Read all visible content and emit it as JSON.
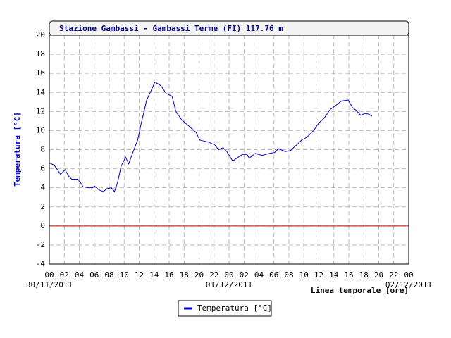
{
  "chart_data": {
    "type": "line",
    "title": "Stazione Gambassi - Gambassi Terme (FI) 117.76 m",
    "y_label": "Temperatura [°C]",
    "x_label": "Linea temporale [ore]",
    "date_labels": [
      {
        "value": 0,
        "label": "30/11/2011"
      },
      {
        "value": 24,
        "label": "01/12/2011"
      },
      {
        "value": 48,
        "label": "02/12/2011"
      }
    ],
    "xlim": [
      0,
      48
    ],
    "xticks": [
      {
        "value": 0,
        "label": "00"
      },
      {
        "value": 2,
        "label": "02"
      },
      {
        "value": 4,
        "label": "04"
      },
      {
        "value": 6,
        "label": "06"
      },
      {
        "value": 8,
        "label": "08"
      },
      {
        "value": 10,
        "label": "10"
      },
      {
        "value": 12,
        "label": "12"
      },
      {
        "value": 14,
        "label": "14"
      },
      {
        "value": 16,
        "label": "16"
      },
      {
        "value": 18,
        "label": "18"
      },
      {
        "value": 20,
        "label": "20"
      },
      {
        "value": 22,
        "label": "22"
      },
      {
        "value": 24,
        "label": "00"
      },
      {
        "value": 26,
        "label": "02"
      },
      {
        "value": 28,
        "label": "04"
      },
      {
        "value": 30,
        "label": "06"
      },
      {
        "value": 32,
        "label": "08"
      },
      {
        "value": 34,
        "label": "10"
      },
      {
        "value": 36,
        "label": "12"
      },
      {
        "value": 38,
        "label": "14"
      },
      {
        "value": 40,
        "label": "16"
      },
      {
        "value": 42,
        "label": "18"
      },
      {
        "value": 44,
        "label": "20"
      },
      {
        "value": 46,
        "label": "22"
      },
      {
        "value": 48,
        "label": "00"
      }
    ],
    "ylim": [
      -4,
      20
    ],
    "yticks": [
      -4,
      -2,
      0,
      2,
      4,
      6,
      8,
      10,
      12,
      14,
      16,
      18,
      20
    ],
    "grid": true,
    "baseline": {
      "value": 0,
      "color": "#cc0000"
    },
    "legend": "bottom",
    "x": [
      0,
      0.6,
      0.9,
      1.5,
      2.1,
      2.6,
      3.0,
      3.8,
      4.2,
      4.5,
      5.3,
      5.8,
      6.0,
      6.6,
      7.2,
      7.7,
      8.3,
      8.7,
      9.1,
      9.6,
      10.2,
      10.6,
      11.1,
      11.8,
      12.2,
      13.0,
      13.6,
      14.1,
      14.9,
      15.6,
      16.4,
      16.9,
      17.7,
      18.6,
      19.6,
      20.1,
      21.2,
      22.1,
      22.6,
      23.2,
      23.7,
      24.5,
      25.2,
      25.8,
      26.4,
      26.7,
      27.5,
      28.4,
      29.4,
      30.1,
      30.6,
      31.5,
      32.2,
      32.9,
      33.7,
      34.4,
      35.3,
      36.0,
      36.7,
      37.5,
      38.2,
      39.0,
      39.9,
      40.5,
      41.0,
      41.6,
      42.2,
      42.7,
      43.1
    ],
    "series": [
      {
        "name": "Temperatura [°C]",
        "color": "#0000cc",
        "values": [
          6.6,
          6.4,
          6.1,
          5.4,
          5.9,
          5.2,
          4.9,
          4.9,
          4.5,
          4.1,
          4.0,
          4.0,
          4.2,
          3.8,
          3.6,
          3.9,
          4.0,
          3.6,
          4.5,
          6.3,
          7.2,
          6.5,
          7.6,
          9.0,
          10.5,
          13.2,
          14.2,
          15.1,
          14.7,
          13.9,
          13.6,
          12.0,
          11.1,
          10.5,
          9.8,
          9.0,
          8.8,
          8.5,
          8.0,
          8.2,
          7.8,
          6.8,
          7.2,
          7.5,
          7.5,
          7.1,
          7.6,
          7.4,
          7.6,
          7.7,
          8.1,
          7.8,
          7.9,
          8.4,
          9.0,
          9.3,
          10.0,
          10.8,
          11.3,
          12.2,
          12.6,
          13.1,
          13.2,
          12.4,
          12.1,
          11.6,
          11.8,
          11.7,
          11.5
        ]
      }
    ]
  }
}
